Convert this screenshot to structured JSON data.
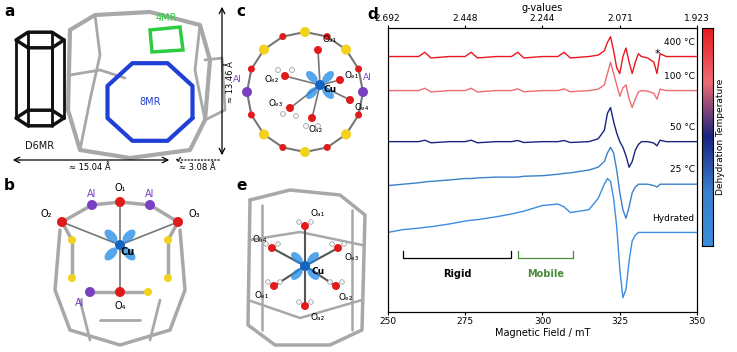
{
  "panels": {
    "a": {
      "label": "a",
      "texts": {
        "ring4": "4MR",
        "ring8": "8MR",
        "prism": "D6MR",
        "height": "≈ 13.46 Å",
        "width": "≈ 15.04 Å",
        "gap": "≈ 3.08 Å"
      }
    },
    "b": {
      "label": "b",
      "labels": [
        "Cu",
        "O₁",
        "O₂",
        "O₃",
        "O₄",
        "Al",
        "Al",
        "Al"
      ]
    },
    "c": {
      "label": "c",
      "labels": [
        "Cu",
        "Oₐ₁",
        "Oₑ₁",
        "Oₑ₂",
        "Oₑ₃",
        "Oₐ₂",
        "Oₑ₄",
        "Al",
        "Al"
      ]
    },
    "e": {
      "label": "e",
      "labels": [
        "Cu",
        "Oₐ₁",
        "Oₐ₂",
        "Oₑ₁",
        "Oₑ₂",
        "Oₑ₃",
        "Oₑ₄"
      ]
    }
  },
  "chart_data": {
    "type": "line",
    "panel": "d",
    "xlabel": "Magnetic Field / mT",
    "x2label": "g-values",
    "xlim": [
      250,
      350
    ],
    "xticks": [
      250,
      275,
      300,
      325,
      350
    ],
    "x2ticks": [
      {
        "value": 250,
        "label": "2.692"
      },
      {
        "value": 275,
        "label": "2.448"
      },
      {
        "value": 300,
        "label": "2.244"
      },
      {
        "value": 325,
        "label": "2.071"
      },
      {
        "value": 350,
        "label": "1.923"
      }
    ],
    "ylim": [
      0,
      100
    ],
    "tick_labels": "x",
    "x": [
      250,
      255,
      260,
      262,
      264,
      270,
      275,
      277,
      279,
      285,
      290,
      292,
      294,
      300,
      305,
      307,
      309,
      315,
      318,
      320,
      321,
      322,
      323,
      324,
      325,
      326,
      327,
      328,
      329,
      330,
      331,
      332,
      334,
      336,
      337,
      338,
      340,
      345,
      350
    ],
    "series": [
      {
        "name": "400 °C",
        "color": "#e8181e",
        "values": [
          90,
          90,
          90,
          91.5,
          89.5,
          90,
          90,
          91.5,
          89.5,
          90,
          90,
          91.5,
          89.5,
          90,
          90,
          91.5,
          89.5,
          90,
          90.5,
          92,
          95,
          97,
          92,
          86,
          84,
          90,
          93,
          88,
          84,
          88,
          91,
          90,
          89.5,
          88,
          84,
          91,
          90,
          90,
          90
        ]
      },
      {
        "name": "100 °C",
        "color": "#ef6b73",
        "values": [
          78,
          78,
          78,
          78.8,
          77.5,
          78,
          78,
          78.8,
          77.5,
          78,
          78,
          78.6,
          77.6,
          78,
          78,
          78.6,
          77.6,
          78,
          78.5,
          80,
          84,
          88,
          84,
          80,
          76,
          79,
          80,
          75,
          72,
          75,
          77.5,
          78,
          77.8,
          77,
          75,
          78.5,
          78,
          78,
          78
        ]
      },
      {
        "name": "50 °C",
        "color": "#1a237e",
        "values": [
          60,
          60,
          60,
          60.5,
          59.6,
          60,
          60,
          60.5,
          59.6,
          60,
          60,
          60.4,
          59.7,
          60,
          60,
          60.4,
          59.7,
          60,
          61,
          64,
          70,
          72,
          67,
          63,
          60,
          58,
          55,
          51,
          53,
          57,
          59,
          60,
          60,
          59.5,
          58.5,
          60.5,
          60,
          60,
          60
        ]
      },
      {
        "name": "25 °C",
        "color": "#3a80c9",
        "values": [
          44.5,
          45,
          45.5,
          45.8,
          46,
          46.5,
          47,
          47,
          47.2,
          47.5,
          47.5,
          47.5,
          47.8,
          48,
          48.5,
          48.8,
          49,
          50,
          51,
          53,
          56,
          58,
          56,
          50,
          42,
          36,
          33,
          37,
          42,
          44,
          45,
          45,
          45,
          44.5,
          44,
          45,
          45,
          45,
          45
        ]
      },
      {
        "name": "Hydrated",
        "color": "#3c8dde",
        "values": [
          28,
          29,
          29.5,
          29.8,
          30,
          31,
          32,
          32.3,
          32.5,
          33.5,
          34.5,
          35,
          35.5,
          37.5,
          38,
          37,
          35,
          36,
          40,
          45,
          47,
          46,
          40,
          30,
          15,
          5,
          8,
          18,
          25,
          27,
          28,
          28,
          28,
          28,
          28,
          28,
          28,
          28,
          28
        ]
      }
    ],
    "annotations": [
      {
        "text": "Rigid",
        "x": [
          255,
          290
        ],
        "color": "#000000"
      },
      {
        "text": "Mobile",
        "x": [
          292,
          310
        ],
        "color": "#4a8a3a"
      },
      {
        "text": "*",
        "x": 337
      }
    ],
    "colorbar": {
      "label": "Dehydration Temperature",
      "colors": [
        "#3c8dde",
        "#3a80c9",
        "#1a237e",
        "#ef6b73",
        "#e8181e"
      ]
    }
  }
}
